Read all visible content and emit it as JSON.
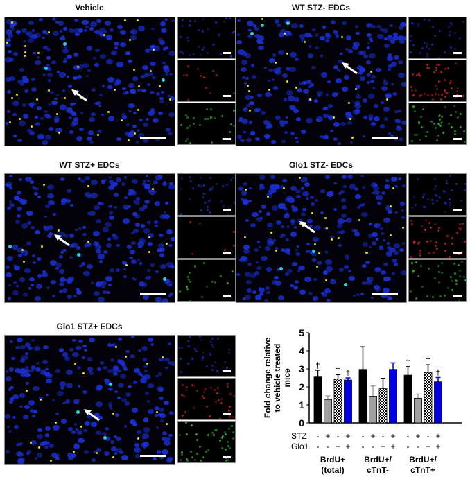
{
  "panels": [
    {
      "title": "Vehicle",
      "red": 0.2,
      "green": 0.4,
      "yellow": 0.9
    },
    {
      "title": "WT STZ- EDCs",
      "red": 0.8,
      "green": 0.7,
      "yellow": 0.5
    },
    {
      "title": "WT STZ+ EDCs",
      "red": 0.1,
      "green": 0.3,
      "yellow": 0.3
    },
    {
      "title": "Glo1 STZ- EDCs",
      "red": 0.7,
      "green": 0.6,
      "yellow": 0.6
    },
    {
      "title": "Glo1 STZ+ EDCs",
      "red": 0.6,
      "green": 0.7,
      "yellow": 0.5
    }
  ],
  "colors": {
    "nuclei": "#1a2fd0",
    "yellow": "#e8e020",
    "green": "#2fbf2f",
    "red": "#d02020"
  },
  "chart_data": {
    "type": "bar",
    "ylabel": "Fold change relative to vehicle treated mice",
    "ylim": [
      0,
      5
    ],
    "yticks": [
      "0",
      "1",
      "2",
      "3",
      "4",
      "5"
    ],
    "groups": [
      "BrdU+ (total)",
      "BrdU+/ cTnT-",
      "BrdU+/ cTnT+"
    ],
    "row_labels": [
      "STZ",
      "Glo1"
    ],
    "conditions": [
      {
        "STZ": "-",
        "Glo1": "-",
        "fill": "#000000"
      },
      {
        "STZ": "+",
        "Glo1": "-",
        "fill": "#a0a0a0"
      },
      {
        "STZ": "-",
        "Glo1": "+",
        "fill": "checkered"
      },
      {
        "STZ": "+",
        "Glo1": "+",
        "fill": "#0000e0"
      }
    ],
    "values": [
      [
        2.55,
        1.3,
        2.43,
        2.38
      ],
      [
        2.97,
        1.48,
        1.9,
        2.97
      ],
      [
        2.65,
        1.37,
        2.8,
        2.28
      ]
    ],
    "error_upper": [
      [
        2.93,
        1.5,
        2.68,
        2.5
      ],
      [
        4.22,
        2.05,
        2.47,
        3.33
      ],
      [
        3.12,
        1.6,
        3.22,
        2.52
      ]
    ],
    "significance_marker": "†",
    "significant": [
      [
        true,
        false,
        true,
        true
      ],
      [
        false,
        false,
        false,
        false
      ],
      [
        true,
        false,
        true,
        true
      ]
    ]
  }
}
